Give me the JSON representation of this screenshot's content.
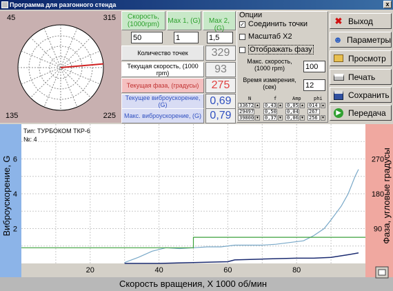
{
  "window": {
    "title": "Программа для разгонного стенда",
    "close_glyph": "x"
  },
  "polar": {
    "labels": {
      "top_left": "45",
      "top_right": "315",
      "bottom_left": "135",
      "bottom_right": "225"
    },
    "pointer_angle_deg": 275
  },
  "inputs": {
    "speed": {
      "label": "Скорость, (1000rpm)",
      "value": "50"
    },
    "max1": {
      "label": "Max 1, (G)",
      "value": "1"
    },
    "max2": {
      "label": "Max 2, (G)",
      "value": "1,5"
    }
  },
  "readouts": [
    {
      "label": "Количество точек",
      "value": "329",
      "color": "#808080"
    },
    {
      "label": "Текущая скорость, (1000 rpm)",
      "value": "93",
      "color": "#808080"
    },
    {
      "label": "Текущая фаза, (градусы)",
      "value": "275",
      "color": "#e04040"
    },
    {
      "label": "Текущее виброускорение, (G)",
      "value": "0,69",
      "color": "#3050c0"
    },
    {
      "label": "Макс. виброускорение, (G)",
      "value": "0,79",
      "color": "#3050c0"
    }
  ],
  "options": {
    "title": "Опции",
    "connect_points": {
      "label": "Соединить точки",
      "checked": true
    },
    "scale_x2": {
      "label": "Масштаб Х2",
      "checked": false
    },
    "show_phase": {
      "label": "Отображать фазу",
      "checked": false
    },
    "max_speed": {
      "label": "Макс. скорость, (1000 rpm)",
      "value": "100"
    },
    "measure_time": {
      "label": "Время измерения, (сек)",
      "value": "12"
    }
  },
  "mini_table": {
    "headers": [
      "N",
      "f",
      "Amp",
      "phi"
    ],
    "rows": [
      [
        "33672",
        "0,43",
        "0,05",
        "014"
      ],
      [
        "29497",
        "0,50",
        "0,04",
        "267"
      ],
      [
        "39800",
        "0,37",
        "0,06",
        "256"
      ]
    ]
  },
  "buttons": [
    {
      "label": "Выход",
      "icon": "close-icon"
    },
    {
      "label": "Параметры",
      "icon": "people-icon"
    },
    {
      "label": "Просмотр",
      "icon": "folder-icon"
    },
    {
      "label": "Печать",
      "icon": "printer-icon"
    },
    {
      "label": "Сохранить",
      "icon": "floppy-icon"
    },
    {
      "label": "Передача",
      "icon": "arrow-icon"
    }
  ],
  "chart_data": {
    "type": "line",
    "annotation_lines": [
      "Тип: ТУРБОКОМ ТКР-6",
      "№: 4"
    ],
    "xlabel": "Скорость вращения, Х 1000 об/мин",
    "ylabel": "Виброускорение, G",
    "y2label": "Фаза, угловые градусы",
    "xlim": [
      0,
      100
    ],
    "ylim": [
      0,
      8
    ],
    "y2lim": [
      0,
      360
    ],
    "x_ticks": [
      20,
      40,
      60,
      80
    ],
    "y_ticks": [
      2,
      4,
      6
    ],
    "y2_ticks": [
      90,
      180,
      270
    ],
    "grid": true,
    "series": [
      {
        "color": "#78a8c8",
        "x": [
          30,
          34,
          38,
          42,
          46,
          50,
          54,
          58,
          62,
          66,
          70,
          74,
          78,
          82,
          85,
          88,
          90,
          93,
          95,
          97,
          98
        ],
        "y": [
          0.05,
          0.35,
          0.7,
          0.9,
          0.85,
          0.9,
          0.95,
          0.95,
          1.05,
          1.05,
          1.05,
          1.1,
          1.2,
          1.3,
          1.6,
          2.0,
          2.5,
          3.3,
          4.0,
          5.0,
          5.4
        ]
      },
      {
        "color": "#1a2a70",
        "x": [
          30,
          40,
          50,
          60,
          62,
          70,
          80,
          85,
          90,
          95,
          98
        ],
        "y": [
          0.0,
          0.0,
          0.05,
          0.1,
          0.2,
          0.25,
          0.3,
          0.3,
          0.35,
          0.5,
          0.6
        ]
      },
      {
        "color": "#3aa03a",
        "x": [
          0,
          50,
          50,
          100
        ],
        "y": [
          0.9,
          0.9,
          1.5,
          1.5
        ]
      }
    ]
  }
}
